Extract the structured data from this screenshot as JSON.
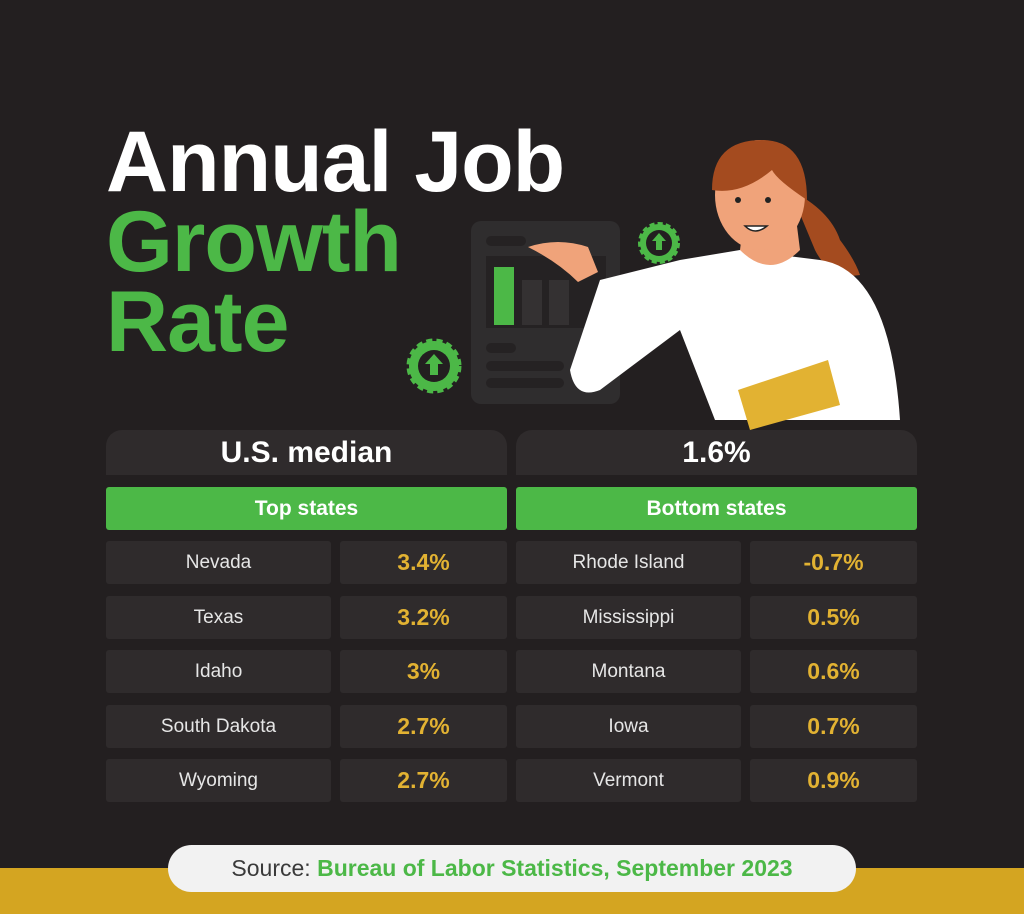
{
  "title": {
    "line1": "Annual Job",
    "line2": "Growth",
    "line3": "Rate"
  },
  "median": {
    "label": "U.S. median",
    "value": "1.6%"
  },
  "top": {
    "header": "Top states",
    "rows": [
      {
        "state": "Nevada",
        "rate": "3.4%"
      },
      {
        "state": "Texas",
        "rate": "3.2%"
      },
      {
        "state": "Idaho",
        "rate": "3%"
      },
      {
        "state": "South Dakota",
        "rate": "2.7%"
      },
      {
        "state": "Wyoming",
        "rate": "2.7%"
      }
    ]
  },
  "bottom": {
    "header": "Bottom states",
    "rows": [
      {
        "state": "Rhode Island",
        "rate": "-0.7%"
      },
      {
        "state": "Mississippi",
        "rate": "0.5%"
      },
      {
        "state": "Montana",
        "rate": "0.6%"
      },
      {
        "state": "Iowa",
        "rate": "0.7%"
      },
      {
        "state": "Vermont",
        "rate": "0.9%"
      }
    ]
  },
  "source": {
    "label": "Source:",
    "text": "Bureau of Labor Statistics, September 2023"
  },
  "colors": {
    "background": "#231f20",
    "green": "#4cb847",
    "gold": "#e2b232",
    "cell": "#2f2b2c"
  }
}
